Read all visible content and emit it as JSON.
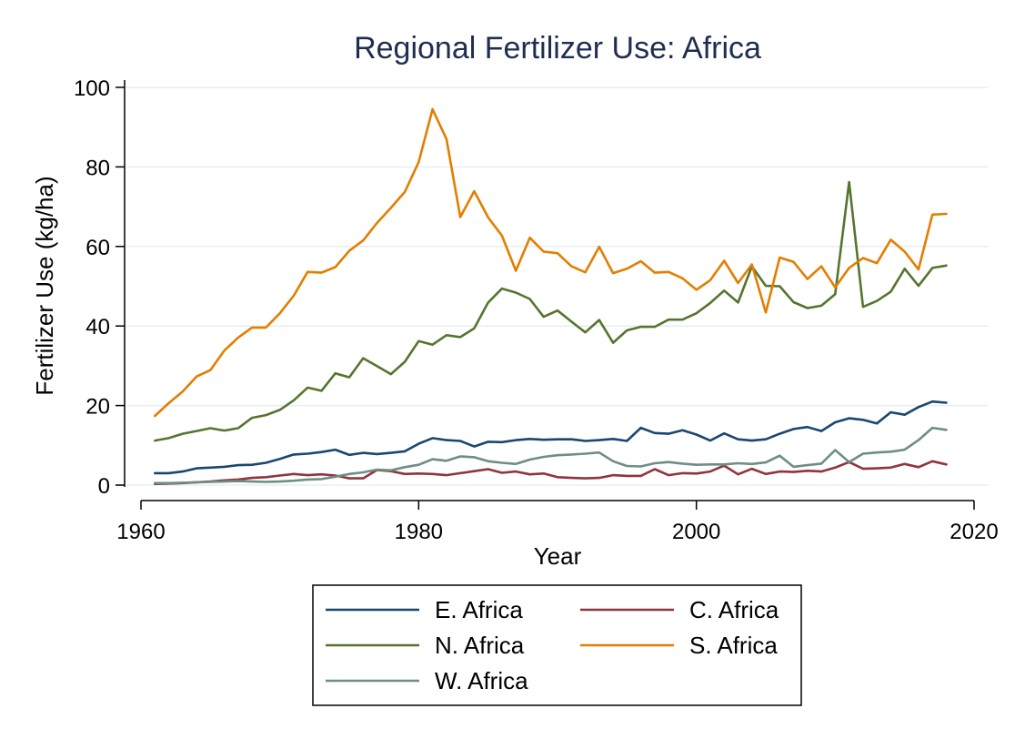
{
  "chart_data": {
    "type": "line",
    "title": "Regional Fertilizer Use: Africa",
    "xlabel": "Year",
    "ylabel": "Fertilizer Use (kg/ha)",
    "xlim": [
      1960,
      2020
    ],
    "ylim": [
      0,
      100
    ],
    "xticks": [
      1960,
      1980,
      2000,
      2020
    ],
    "yticks": [
      0,
      20,
      40,
      60,
      80,
      100
    ],
    "grid": true,
    "legend_position": "bottom",
    "x": [
      1961,
      1962,
      1963,
      1964,
      1965,
      1966,
      1967,
      1968,
      1969,
      1970,
      1971,
      1972,
      1973,
      1974,
      1975,
      1976,
      1977,
      1978,
      1979,
      1980,
      1981,
      1982,
      1983,
      1984,
      1985,
      1986,
      1987,
      1988,
      1989,
      1990,
      1991,
      1992,
      1993,
      1994,
      1995,
      1996,
      1997,
      1998,
      1999,
      2000,
      2001,
      2002,
      2003,
      2004,
      2005,
      2006,
      2007,
      2008,
      2009,
      2010,
      2011,
      2012,
      2013,
      2014,
      2015,
      2016,
      2017,
      2018
    ],
    "series": [
      {
        "name": "E. Africa",
        "color": "#1a476f",
        "values": [
          3.0,
          3.0,
          3.4,
          4.2,
          4.4,
          4.6,
          5.0,
          5.1,
          5.6,
          6.6,
          7.7,
          7.9,
          8.3,
          8.9,
          7.6,
          8.1,
          7.8,
          8.1,
          8.5,
          10.4,
          11.8,
          11.3,
          11.1,
          9.7,
          10.9,
          10.8,
          11.3,
          11.6,
          11.4,
          11.5,
          11.5,
          11.1,
          11.3,
          11.6,
          11.1,
          14.4,
          13.1,
          12.9,
          13.8,
          12.7,
          11.2,
          13.0,
          11.5,
          11.2,
          11.5,
          12.9,
          14.1,
          14.6,
          13.6,
          15.8,
          16.8,
          16.4,
          15.5,
          18.3,
          17.7,
          19.6,
          21.0,
          20.7
        ]
      },
      {
        "name": "C. Africa",
        "color": "#90353b",
        "values": [
          0.3,
          0.4,
          0.5,
          0.7,
          0.9,
          1.2,
          1.4,
          1.8,
          2.0,
          2.4,
          2.8,
          2.5,
          2.7,
          2.4,
          1.7,
          1.7,
          3.8,
          3.5,
          2.8,
          2.9,
          2.8,
          2.5,
          3.0,
          3.5,
          4.0,
          3.1,
          3.4,
          2.7,
          2.9,
          2.0,
          1.8,
          1.7,
          1.8,
          2.5,
          2.3,
          2.3,
          4.0,
          2.5,
          3.0,
          2.9,
          3.4,
          4.9,
          2.7,
          4.1,
          2.8,
          3.4,
          3.3,
          3.6,
          3.4,
          4.4,
          5.8,
          4.1,
          4.2,
          4.4,
          5.3,
          4.5,
          6.0,
          5.2
        ]
      },
      {
        "name": "N. Africa",
        "color": "#55752f",
        "values": [
          11.2,
          11.8,
          12.9,
          13.6,
          14.3,
          13.7,
          14.3,
          16.9,
          17.6,
          18.9,
          21.3,
          24.5,
          23.7,
          28.1,
          27.1,
          31.9,
          29.9,
          27.9,
          31.0,
          36.2,
          35.3,
          37.7,
          37.2,
          39.4,
          45.9,
          49.4,
          48.4,
          46.8,
          42.3,
          43.9,
          41.1,
          38.4,
          41.5,
          35.8,
          38.9,
          39.8,
          39.8,
          41.6,
          41.6,
          43.2,
          45.8,
          48.9,
          45.9,
          55.0,
          50.1,
          50.0,
          46.0,
          44.5,
          45.1,
          48.0,
          76.2,
          44.8,
          46.3,
          48.6,
          54.4,
          50.1,
          54.6,
          55.2
        ]
      },
      {
        "name": "S. Africa",
        "color": "#e37e00",
        "values": [
          17.4,
          20.6,
          23.5,
          27.3,
          28.9,
          33.8,
          37.1,
          39.6,
          39.6,
          43.2,
          47.6,
          53.6,
          53.4,
          54.8,
          58.9,
          61.5,
          65.9,
          69.7,
          73.7,
          81.2,
          94.5,
          87.0,
          67.4,
          73.9,
          67.3,
          62.7,
          53.9,
          62.2,
          58.7,
          58.3,
          55.0,
          53.5,
          59.9,
          53.3,
          54.4,
          56.3,
          53.4,
          53.6,
          52.0,
          49.1,
          51.5,
          56.4,
          50.8,
          55.5,
          43.4,
          57.2,
          56.1,
          51.8,
          55.0,
          49.7,
          54.6,
          57.1,
          55.8,
          61.7,
          58.7,
          54.2,
          68.0,
          68.2
        ]
      },
      {
        "name": "W. Africa",
        "color": "#6e8e84",
        "values": [
          0.5,
          0.5,
          0.6,
          0.7,
          0.8,
          0.9,
          1.0,
          0.9,
          0.8,
          0.9,
          1.1,
          1.4,
          1.5,
          2.1,
          2.8,
          3.2,
          3.9,
          3.7,
          4.5,
          5.1,
          6.5,
          6.1,
          7.2,
          7.0,
          6.0,
          5.6,
          5.3,
          6.4,
          7.1,
          7.5,
          7.7,
          7.9,
          8.2,
          6.0,
          4.8,
          4.7,
          5.5,
          5.8,
          5.4,
          5.1,
          5.2,
          5.2,
          5.5,
          5.3,
          5.7,
          7.4,
          4.6,
          5.0,
          5.4,
          8.8,
          5.8,
          7.9,
          8.2,
          8.4,
          8.9,
          11.3,
          14.4,
          13.9
        ]
      }
    ]
  }
}
